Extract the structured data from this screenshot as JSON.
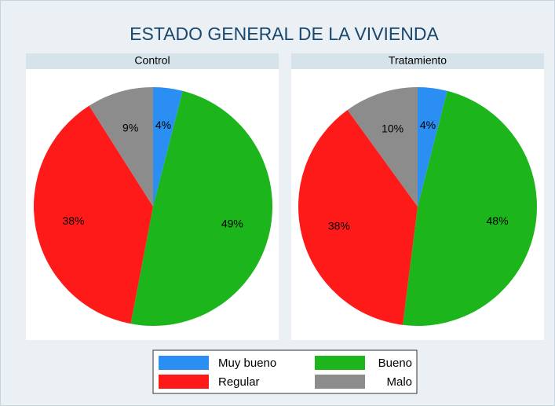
{
  "title": "ESTADO GENERAL DE LA VIVIENDA",
  "chart_data": [
    {
      "type": "pie",
      "title": "Control",
      "categories": [
        "Muy bueno",
        "Bueno",
        "Regular",
        "Malo"
      ],
      "values": [
        4,
        49,
        38,
        9
      ],
      "value_labels": [
        "4%",
        "49%",
        "38%",
        "9%"
      ],
      "colors": [
        "#2b8ef2",
        "#1cb51c",
        "#ff1a1a",
        "#8c8c8c"
      ]
    },
    {
      "type": "pie",
      "title": "Tratamiento",
      "categories": [
        "Muy bueno",
        "Bueno",
        "Regular",
        "Malo"
      ],
      "values": [
        4,
        48,
        38,
        10
      ],
      "value_labels": [
        "4%",
        "48%",
        "38%",
        "10%"
      ],
      "colors": [
        "#2b8ef2",
        "#1cb51c",
        "#ff1a1a",
        "#8c8c8c"
      ]
    }
  ]
}
